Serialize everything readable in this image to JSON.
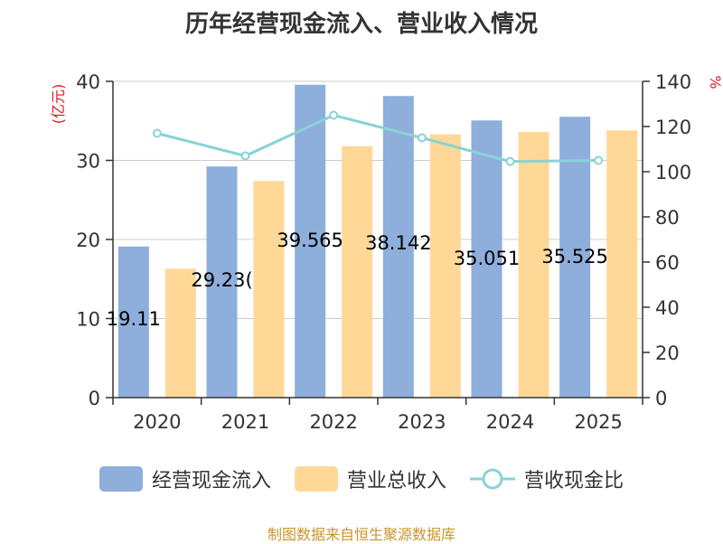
{
  "source_note": "制图数据来自恒生聚源数据库",
  "colors": {
    "cash_inflow": "#8eaedb",
    "revenue": "#ffd898",
    "ratio": "#88d3d6",
    "axis_label": "#e0161f",
    "grid": "#cccccc",
    "axis": "#333333"
  },
  "chart_data": {
    "type": "bar",
    "title": "历年经营现金流入、营业收入情况",
    "categories": [
      "2020",
      "2021",
      "2022",
      "2023",
      "2024",
      "2025"
    ],
    "y_left": {
      "label": "(亿元)",
      "ticks": [
        0,
        10,
        20,
        30,
        40
      ],
      "range": [
        0,
        40
      ]
    },
    "y_right": {
      "label": "%",
      "ticks": [
        0,
        20,
        40,
        60,
        80,
        100,
        120,
        140
      ],
      "range": [
        0,
        140
      ]
    },
    "series": [
      {
        "name": "经营现金流入",
        "type": "bar",
        "axis": "left",
        "values": [
          19.11,
          29.23,
          39.565,
          38.142,
          35.051,
          35.525
        ],
        "data_labels": [
          "19.11",
          "29.23(",
          "39.565",
          "38.142",
          "35.051",
          "35.525"
        ]
      },
      {
        "name": "营业总收入",
        "type": "bar",
        "axis": "left",
        "values": [
          16.3,
          27.4,
          31.8,
          33.3,
          33.6,
          33.8
        ]
      },
      {
        "name": "营收现金比",
        "type": "line",
        "axis": "right",
        "values": [
          117,
          107,
          125,
          115,
          104.5,
          105
        ]
      }
    ],
    "grid": true,
    "legend_position": "bottom"
  }
}
